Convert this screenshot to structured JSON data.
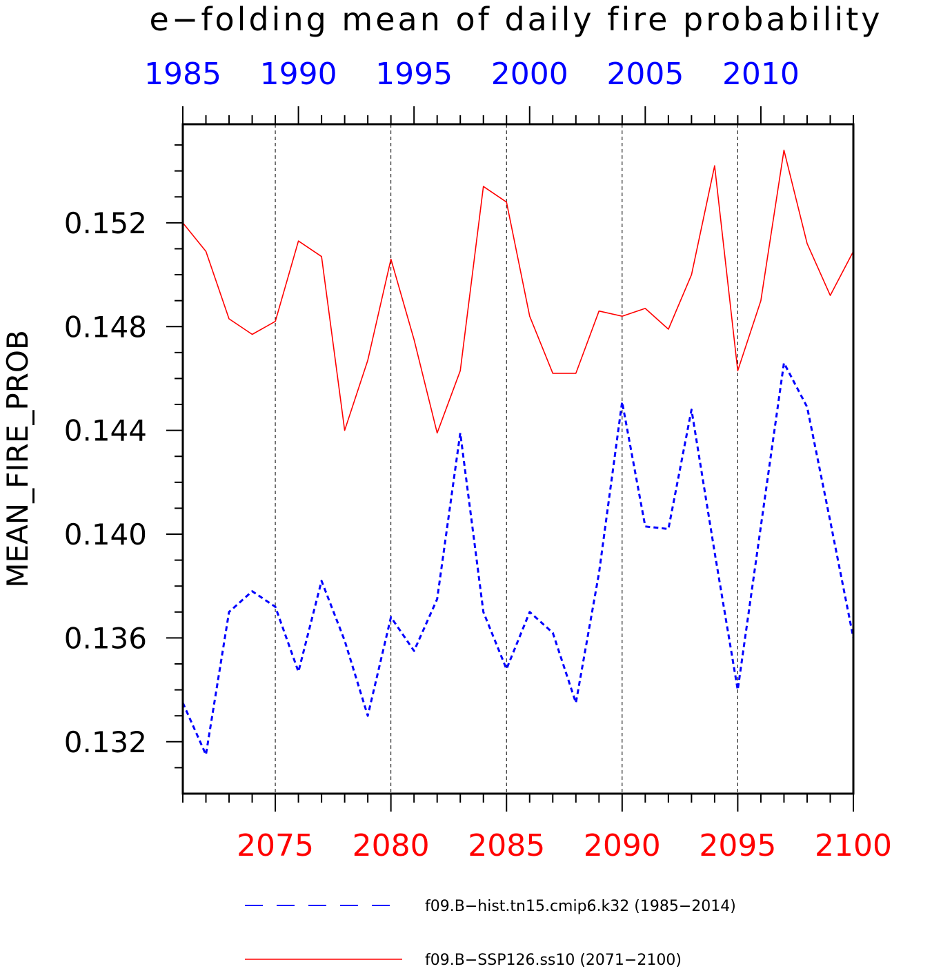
{
  "chart_data": {
    "type": "line",
    "title": "e−folding mean of daily fire probability",
    "ylabel": "MEAN_FIRE_PROB",
    "ylim": [
      0.13,
      0.1558
    ],
    "y_ticks": [
      "0.132",
      "0.136",
      "0.140",
      "0.144",
      "0.148",
      "0.152"
    ],
    "y_tick_values": [
      0.132,
      0.136,
      0.14,
      0.144,
      0.148,
      0.152
    ],
    "top_axis": {
      "color": "#0000ff",
      "xlim": [
        1985,
        2014
      ],
      "tick_labels": [
        "1985",
        "1990",
        "1995",
        "2000",
        "2005",
        "2010"
      ],
      "tick_values": [
        1985,
        1990,
        1995,
        2000,
        2005,
        2010
      ]
    },
    "bottom_axis": {
      "color": "#ff0000",
      "xlim": [
        2071,
        2100
      ],
      "tick_labels": [
        "2075",
        "2080",
        "2085",
        "2090",
        "2095",
        "2100"
      ],
      "tick_values": [
        2075,
        2080,
        2085,
        2090,
        2095,
        2100
      ]
    },
    "vertical_grid": "dashed, at bottom-axis major ticks",
    "legend_position": "bottom",
    "series": [
      {
        "name": "f09.B−hist.tn15.cmip6.k32 (1985−2014)",
        "axis": "top",
        "color": "#0000ff",
        "style": "dashed",
        "x": [
          1985,
          1986,
          1987,
          1988,
          1989,
          1990,
          1991,
          1992,
          1993,
          1994,
          1995,
          1996,
          1997,
          1998,
          1999,
          2000,
          2001,
          2002,
          2003,
          2004,
          2005,
          2006,
          2007,
          2008,
          2009,
          2010,
          2011,
          2012,
          2013,
          2014
        ],
        "values": [
          0.1335,
          0.1315,
          0.137,
          0.1378,
          0.1372,
          0.1347,
          0.1382,
          0.1359,
          0.133,
          0.1368,
          0.1355,
          0.1375,
          0.1439,
          0.137,
          0.1348,
          0.137,
          0.1362,
          0.1335,
          0.1385,
          0.1451,
          0.1403,
          0.1402,
          0.1448,
          0.1393,
          0.134,
          0.1403,
          0.1466,
          0.1449,
          0.1405,
          0.136
        ]
      },
      {
        "name": "f09.B−SSP126.ss10 (2071−2100)",
        "axis": "bottom",
        "color": "#ff0000",
        "style": "solid",
        "x": [
          2071,
          2072,
          2073,
          2074,
          2075,
          2076,
          2077,
          2078,
          2079,
          2080,
          2081,
          2082,
          2083,
          2084,
          2085,
          2086,
          2087,
          2088,
          2089,
          2090,
          2091,
          2092,
          2093,
          2094,
          2095,
          2096,
          2097,
          2098,
          2099,
          2100
        ],
        "values": [
          0.152,
          0.1509,
          0.1483,
          0.1477,
          0.1482,
          0.1513,
          0.1507,
          0.144,
          0.1467,
          0.1506,
          0.1475,
          0.1439,
          0.1463,
          0.1534,
          0.1528,
          0.1484,
          0.1462,
          0.1462,
          0.1486,
          0.1484,
          0.1487,
          0.1479,
          0.15,
          0.1542,
          0.1463,
          0.149,
          0.1548,
          0.1512,
          0.1492,
          0.1509
        ]
      }
    ]
  }
}
